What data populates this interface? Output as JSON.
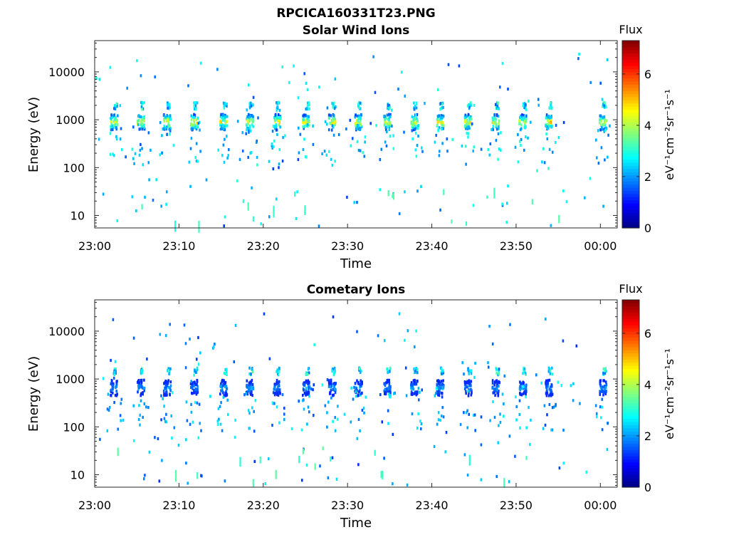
{
  "figure_title": "RPCICA160331T23.PNG",
  "colormap": [
    "#00007f",
    "#0000ff",
    "#007fff",
    "#00ffff",
    "#7fff7f",
    "#ffff00",
    "#ff7f00",
    "#ff0000",
    "#7f0000"
  ],
  "chart_data": [
    {
      "type": "heatmap",
      "title": "Solar Wind Ions",
      "xlabel": "Time",
      "ylabel": "Energy (eV)",
      "yscale": "log",
      "ylim": [
        5.5,
        45000
      ],
      "xlim": [
        "23:00",
        "00:02"
      ],
      "x_ticks": [
        "23:00",
        "23:10",
        "23:20",
        "23:30",
        "23:40",
        "23:50",
        "00:00"
      ],
      "y_ticks": [
        "10",
        "100",
        "1000",
        "10000"
      ],
      "colorbar": {
        "label": "Flux",
        "units": "eV⁻¹cm⁻²sr⁻¹s⁻¹",
        "range": [
          0,
          7.3
        ],
        "ticks": [
          "0",
          "2",
          "4",
          "6"
        ]
      },
      "grid": false,
      "sweep_times_min": [
        2.2,
        5.4,
        8.5,
        11.7,
        15.2,
        18.3,
        21.5,
        25.0,
        28.1,
        31.2,
        34.6,
        37.8,
        40.9,
        44.2,
        47.5,
        50.7,
        53.8,
        60.2
      ],
      "beam_energy_eV": 950,
      "beam_peak_flux": 4.8,
      "scatter_flux": 2.6
    },
    {
      "type": "heatmap",
      "title": "Cometary Ions",
      "xlabel": "Time",
      "ylabel": "Energy (eV)",
      "yscale": "log",
      "ylim": [
        5.5,
        45000
      ],
      "xlim": [
        "23:00",
        "00:02"
      ],
      "x_ticks": [
        "23:00",
        "23:10",
        "23:20",
        "23:30",
        "23:40",
        "23:50",
        "00:00"
      ],
      "y_ticks": [
        "10",
        "100",
        "1000",
        "10000"
      ],
      "colorbar": {
        "label": "Flux",
        "units": "eV⁻¹cm⁻²sr⁻¹s⁻¹",
        "range": [
          0,
          7.3
        ],
        "ticks": [
          "0",
          "2",
          "4",
          "6"
        ]
      },
      "grid": false,
      "sweep_times_min": [
        2.2,
        5.4,
        8.5,
        11.7,
        15.2,
        18.3,
        21.5,
        25.0,
        28.1,
        31.2,
        34.6,
        37.8,
        40.9,
        44.2,
        47.5,
        50.7,
        53.8,
        60.2
      ],
      "beam_energy_eV": 700,
      "beam_peak_flux": 2.2,
      "scatter_flux": 2.4
    }
  ]
}
